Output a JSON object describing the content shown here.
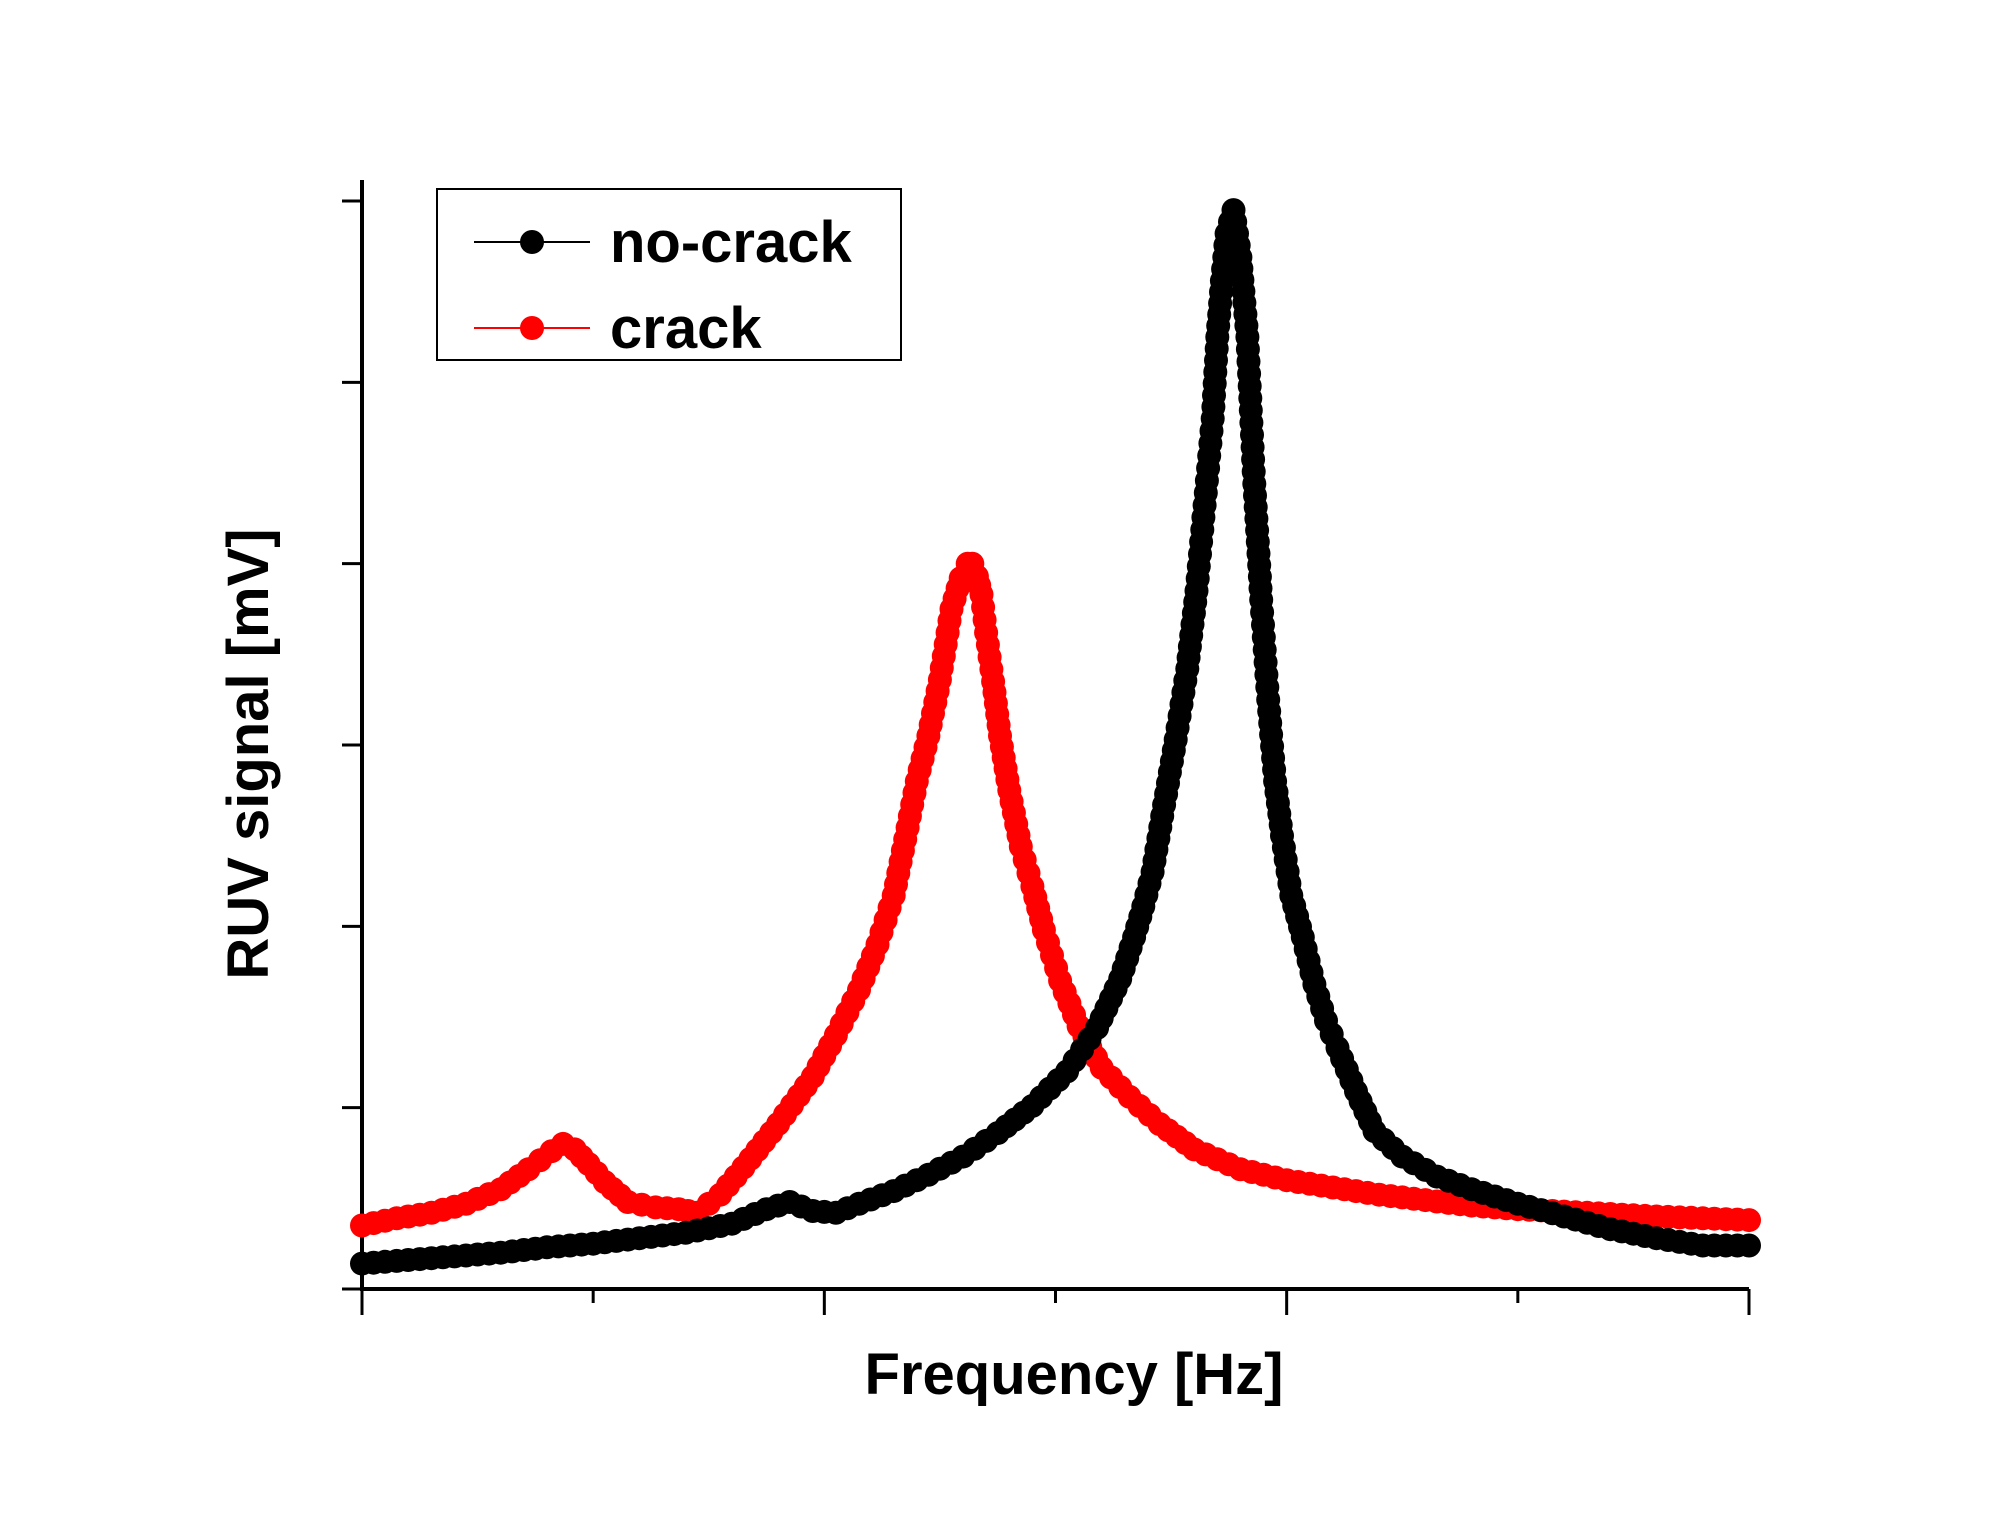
{
  "chart_data": {
    "type": "scatter",
    "xlabel": "Frequency [Hz]",
    "ylabel": "RUV signal [mV]",
    "x_tick_labels": [],
    "y_tick_labels": [],
    "xlim": [
      0,
      6
    ],
    "ylim": [
      0,
      6
    ],
    "grid": false,
    "legend": {
      "position": "top-left",
      "entries": [
        "no-crack",
        "crack"
      ]
    },
    "series": [
      {
        "name": "no-crack",
        "color": "#000000",
        "marker": "circle",
        "x": [
          0.0,
          0.2,
          0.4,
          0.6,
          0.8,
          1.0,
          1.2,
          1.4,
          1.6,
          1.75,
          1.85,
          1.95,
          2.05,
          2.15,
          2.3,
          2.45,
          2.6,
          2.75,
          2.9,
          3.05,
          3.18,
          3.28,
          3.34,
          3.38,
          3.42,
          3.47,
          3.52,
          3.57,
          3.61,
          3.65,
          3.68,
          3.7,
          3.72,
          3.74,
          3.77,
          3.8,
          3.83,
          3.86,
          3.89,
          3.92,
          3.95,
          3.98,
          4.02,
          4.07,
          4.12,
          4.17,
          4.22,
          4.3,
          4.38,
          4.5,
          4.65,
          4.8,
          5.0,
          5.2,
          5.4,
          5.6,
          5.8,
          6.0
        ],
        "y": [
          0.14,
          0.16,
          0.18,
          0.2,
          0.23,
          0.25,
          0.28,
          0.31,
          0.36,
          0.44,
          0.48,
          0.43,
          0.42,
          0.47,
          0.54,
          0.63,
          0.73,
          0.86,
          1.01,
          1.2,
          1.44,
          1.71,
          1.94,
          2.11,
          2.3,
          2.67,
          3.03,
          3.42,
          3.85,
          4.39,
          4.8,
          5.25,
          5.56,
          5.82,
          5.95,
          5.69,
          5.25,
          4.44,
          3.8,
          3.25,
          2.8,
          2.5,
          2.17,
          1.94,
          1.68,
          1.48,
          1.33,
          1.09,
          0.87,
          0.73,
          0.62,
          0.55,
          0.47,
          0.4,
          0.33,
          0.28,
          0.24,
          0.24
        ]
      },
      {
        "name": "crack",
        "color": "#ff0000",
        "marker": "circle",
        "x": [
          0.0,
          0.15,
          0.3,
          0.45,
          0.6,
          0.72,
          0.82,
          0.87,
          0.92,
          0.98,
          1.05,
          1.15,
          1.27,
          1.37,
          1.45,
          1.55,
          1.65,
          1.8,
          1.95,
          2.05,
          2.15,
          2.23,
          2.3,
          2.35,
          2.4,
          2.45,
          2.5,
          2.55,
          2.59,
          2.62,
          2.64,
          2.66,
          2.68,
          2.7,
          2.73,
          2.76,
          2.8,
          2.85,
          2.9,
          2.95,
          3.02,
          3.1,
          3.2,
          3.32,
          3.45,
          3.6,
          3.8,
          4.0,
          4.2,
          4.4,
          4.6,
          4.8,
          5.0,
          5.3,
          5.6,
          6.0
        ],
        "y": [
          0.35,
          0.39,
          0.42,
          0.47,
          0.55,
          0.66,
          0.76,
          0.8,
          0.77,
          0.69,
          0.59,
          0.48,
          0.45,
          0.44,
          0.42,
          0.52,
          0.67,
          0.91,
          1.17,
          1.4,
          1.65,
          1.9,
          2.17,
          2.48,
          2.8,
          3.05,
          3.36,
          3.75,
          3.92,
          4.0,
          4.0,
          3.93,
          3.83,
          3.62,
          3.35,
          3.05,
          2.75,
          2.44,
          2.22,
          1.98,
          1.7,
          1.45,
          1.22,
          1.06,
          0.91,
          0.77,
          0.66,
          0.6,
          0.56,
          0.52,
          0.49,
          0.46,
          0.44,
          0.42,
          0.4,
          0.38
        ]
      }
    ]
  }
}
